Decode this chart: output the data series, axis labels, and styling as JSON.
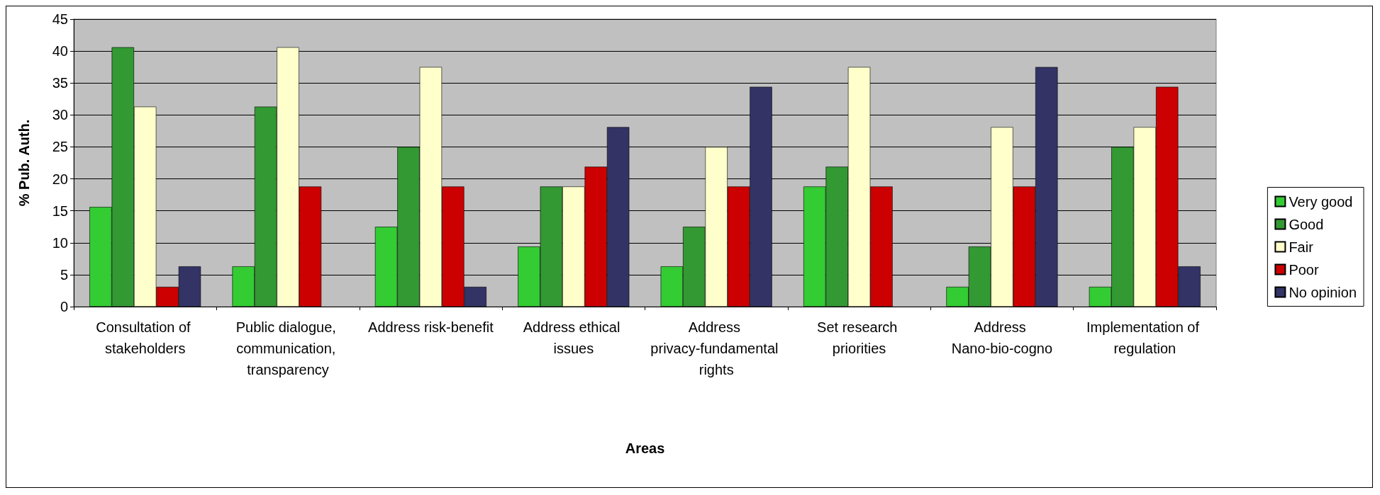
{
  "chart_data": {
    "type": "bar",
    "xlabel": "Areas",
    "ylabel": "% Pub. Auth.",
    "categories": [
      "Consultation of stakeholders",
      "Public dialogue, communication, transparency",
      "Address risk-benefit",
      "Address ethical issues",
      "Address privacy-fundamental rights",
      "Set research priorities",
      "Address Nano-bio-cogno",
      "Implementation of regulation"
    ],
    "series": [
      {
        "name": "Very good",
        "color": "#33cc33",
        "values": [
          15.6,
          6.3,
          12.5,
          9.4,
          6.3,
          18.8,
          3.1,
          3.1
        ]
      },
      {
        "name": "Good",
        "color": "#339933",
        "values": [
          40.6,
          31.3,
          25,
          18.8,
          12.5,
          21.9,
          9.4,
          25
        ]
      },
      {
        "name": "Fair",
        "color": "#ffffcc",
        "values": [
          31.3,
          40.6,
          37.5,
          18.8,
          25,
          37.5,
          28.1,
          28.1
        ]
      },
      {
        "name": "Poor",
        "color": "#cc0000",
        "values": [
          3.1,
          18.8,
          18.8,
          21.9,
          18.8,
          18.8,
          18.8,
          34.4
        ]
      },
      {
        "name": "No opinion",
        "color": "#333366",
        "values": [
          6.3,
          null,
          3.1,
          28.1,
          34.4,
          null,
          37.5,
          6.3
        ]
      }
    ],
    "ylim": [
      0,
      45
    ],
    "yticks": [
      0,
      5,
      10,
      15,
      20,
      25,
      30,
      35,
      40,
      45
    ],
    "grid": "y",
    "legend": "right"
  }
}
